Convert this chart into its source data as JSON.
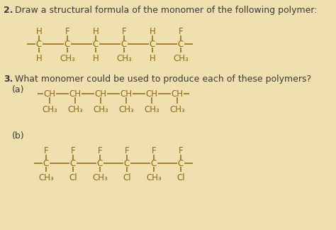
{
  "background_color": "#f0e0b0",
  "text_color": "#8B6914",
  "line_color": "#8B6914",
  "bold_color": "#3a3a3a",
  "fig_width": 4.74,
  "fig_height": 3.24,
  "dpi": 100,
  "q2_top_labels": [
    "H",
    "F",
    "H",
    "F",
    "H",
    "F"
  ],
  "q2_bot_labels": [
    "H",
    "CH₃",
    "H",
    "CH₃",
    "H",
    "CH₃"
  ],
  "q3a_bot_labels": [
    "CH₃",
    "CH₃",
    "CH₃",
    "CH₃",
    "CH₃",
    "CH₃"
  ],
  "q3b_top_labels": [
    "F",
    "F",
    "F",
    "F",
    "F",
    "F"
  ],
  "q3b_bot_labels": [
    "CH₃",
    "Cl",
    "CH₃",
    "Cl",
    "CH₃",
    "Cl"
  ]
}
